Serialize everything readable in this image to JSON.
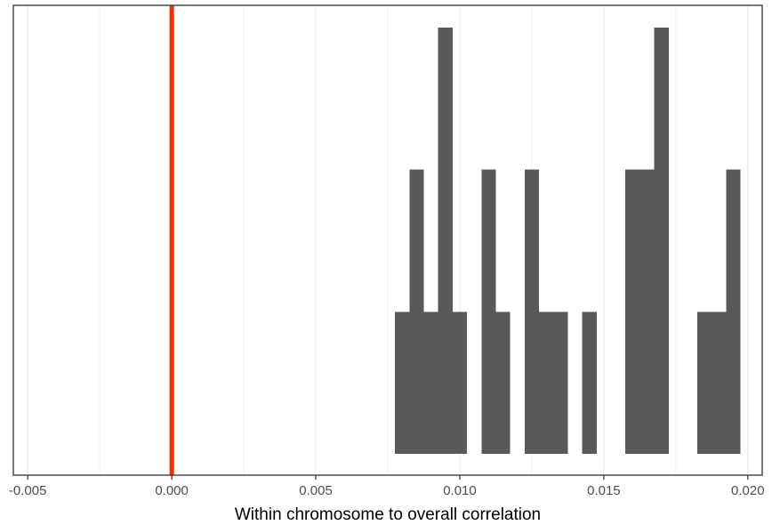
{
  "chart_data": {
    "type": "histogram",
    "title": "",
    "xlabel": "Within chromosome to overall correlation",
    "ylabel": "",
    "xlim": [
      -0.0055,
      0.0205
    ],
    "ylim": [
      0,
      3
    ],
    "x_ticks": [
      -0.005,
      0.0,
      0.005,
      0.01,
      0.015,
      0.02
    ],
    "x_tick_labels": [
      "-0.005",
      "0.000",
      "0.005",
      "0.010",
      "0.015",
      "0.020"
    ],
    "grid": true,
    "legend": "none",
    "bin_width": 0.0005,
    "bins": [
      {
        "x0": 0.00775,
        "x1": 0.00825,
        "count": 1
      },
      {
        "x0": 0.00825,
        "x1": 0.00875,
        "count": 2
      },
      {
        "x0": 0.00875,
        "x1": 0.00925,
        "count": 1
      },
      {
        "x0": 0.00925,
        "x1": 0.00975,
        "count": 3
      },
      {
        "x0": 0.00975,
        "x1": 0.01025,
        "count": 1
      },
      {
        "x0": 0.01075,
        "x1": 0.01125,
        "count": 2
      },
      {
        "x0": 0.01125,
        "x1": 0.01175,
        "count": 1
      },
      {
        "x0": 0.01225,
        "x1": 0.01275,
        "count": 2
      },
      {
        "x0": 0.01275,
        "x1": 0.01375,
        "count": 1
      },
      {
        "x0": 0.01425,
        "x1": 0.01475,
        "count": 1
      },
      {
        "x0": 0.01575,
        "x1": 0.01675,
        "count": 2
      },
      {
        "x0": 0.01675,
        "x1": 0.01725,
        "count": 3
      },
      {
        "x0": 0.01825,
        "x1": 0.01925,
        "count": 1
      },
      {
        "x0": 0.01925,
        "x1": 0.01975,
        "count": 2
      }
    ],
    "reference_line": {
      "x": 0.0,
      "color": "#ff2a00"
    },
    "bar_color": "#595959",
    "grid_color": "#ebebeb",
    "panel_border_color": "#333333"
  }
}
